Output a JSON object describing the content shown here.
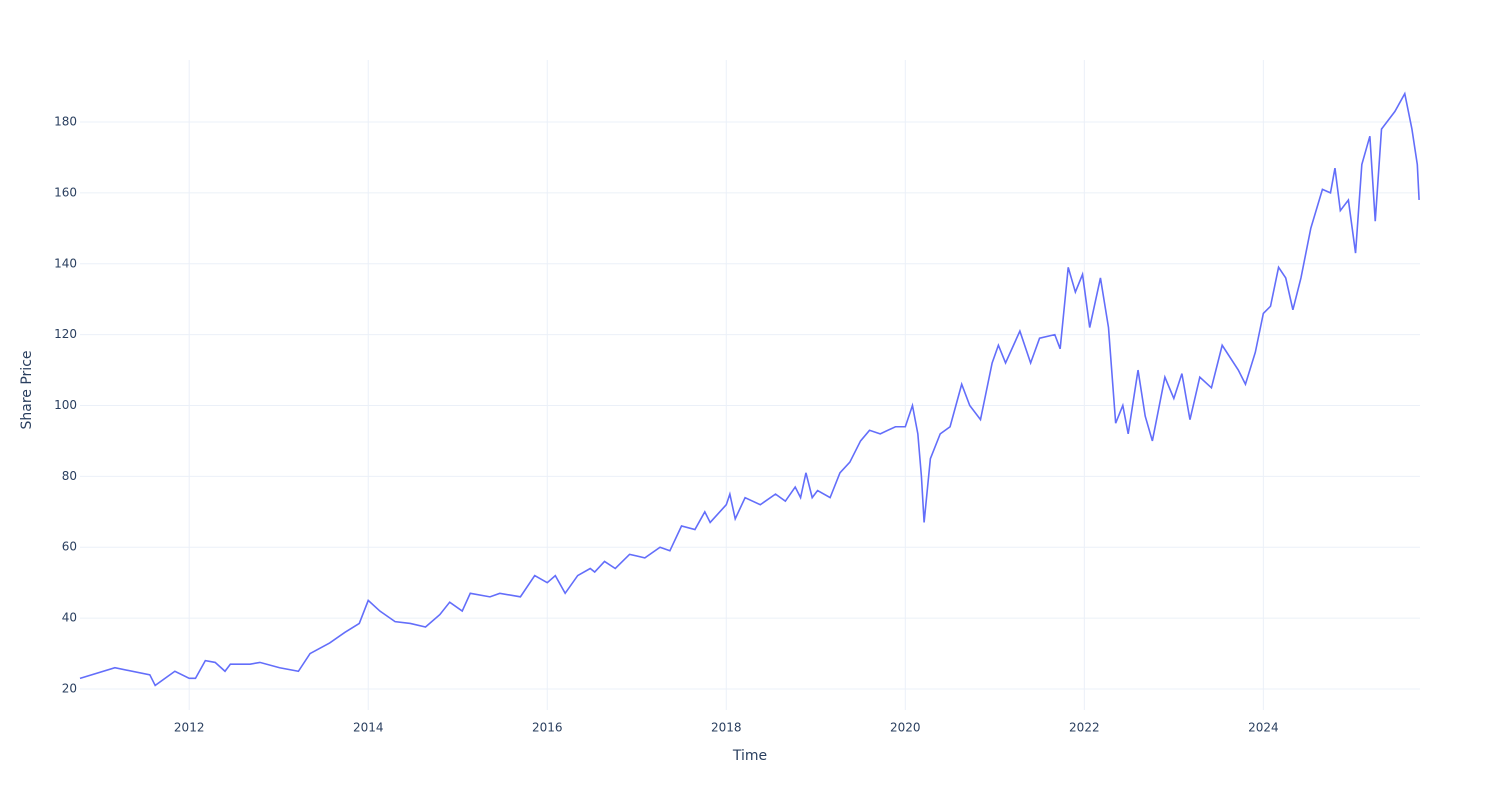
{
  "chart_data": {
    "type": "line",
    "x_label": "Time",
    "y_label": "Share Price",
    "x": [
      2010.78,
      2011.17,
      2011.56,
      2011.62,
      2011.84,
      2012.0,
      2012.07,
      2012.18,
      2012.29,
      2012.4,
      2012.46,
      2012.68,
      2012.79,
      2013.01,
      2013.22,
      2013.35,
      2013.57,
      2013.74,
      2013.9,
      2014.0,
      2014.13,
      2014.3,
      2014.47,
      2014.64,
      2014.8,
      2014.91,
      2015.05,
      2015.14,
      2015.36,
      2015.47,
      2015.7,
      2015.86,
      2016.0,
      2016.09,
      2016.2,
      2016.34,
      2016.48,
      2016.53,
      2016.64,
      2016.76,
      2016.92,
      2017.09,
      2017.26,
      2017.37,
      2017.5,
      2017.65,
      2017.76,
      2017.82,
      2018.0,
      2018.04,
      2018.1,
      2018.21,
      2018.38,
      2018.55,
      2018.66,
      2018.77,
      2018.83,
      2018.89,
      2018.96,
      2019.02,
      2019.16,
      2019.27,
      2019.38,
      2019.5,
      2019.6,
      2019.72,
      2019.89,
      2020.0,
      2020.08,
      2020.14,
      2020.18,
      2020.21,
      2020.28,
      2020.39,
      2020.5,
      2020.63,
      2020.72,
      2020.84,
      2020.97,
      2021.04,
      2021.12,
      2021.28,
      2021.4,
      2021.5,
      2021.67,
      2021.73,
      2021.82,
      2021.9,
      2021.98,
      2022.06,
      2022.18,
      2022.27,
      2022.35,
      2022.43,
      2022.49,
      2022.6,
      2022.68,
      2022.76,
      2022.9,
      2023.0,
      2023.09,
      2023.18,
      2023.29,
      2023.42,
      2023.54,
      2023.72,
      2023.8,
      2023.91,
      2024.0,
      2024.08,
      2024.17,
      2024.25,
      2024.33,
      2024.42,
      2024.53,
      2024.66,
      2024.75,
      2024.8,
      2024.86,
      2024.95,
      2025.03,
      2025.1,
      2025.19,
      2025.25,
      2025.32,
      2025.47,
      2025.58,
      2025.66,
      2025.72,
      2025.74
    ],
    "values": [
      23,
      26,
      24,
      21,
      25,
      23,
      23,
      28,
      27.5,
      25,
      27,
      27,
      27.5,
      26,
      25,
      30,
      33,
      36,
      38.5,
      45,
      42,
      39,
      38.5,
      37.5,
      41,
      44.5,
      42,
      47,
      46,
      47,
      46,
      52,
      50,
      52,
      47,
      52,
      54,
      53,
      56,
      54,
      58,
      57,
      60,
      59,
      66,
      65,
      70,
      67,
      72,
      75,
      68,
      74,
      72,
      75,
      73,
      77,
      74,
      81,
      74,
      76,
      74,
      81,
      84,
      90,
      93,
      92,
      94,
      94,
      100,
      92,
      80,
      67,
      85,
      92,
      94,
      106,
      100,
      96,
      112,
      117,
      112,
      121,
      112,
      119,
      120,
      116,
      139,
      132,
      137,
      122,
      136,
      122,
      95,
      100,
      92,
      110,
      97,
      90,
      108,
      102,
      109,
      96,
      108,
      105,
      117,
      110,
      106,
      115,
      126,
      128,
      139,
      136,
      127,
      136,
      150,
      161,
      160,
      167,
      155,
      158,
      143,
      168,
      176,
      152,
      178,
      183,
      188,
      178,
      168,
      158
    ],
    "color": "#636efa",
    "xlim": [
      2010.78,
      2025.75
    ],
    "xticks": [
      2012,
      2014,
      2016,
      2018,
      2020,
      2022,
      2024
    ],
    "ylim": [
      14.07,
      197.5
    ],
    "yticks": [
      20,
      40,
      60,
      80,
      100,
      120,
      140,
      160,
      180
    ],
    "grid": true
  }
}
